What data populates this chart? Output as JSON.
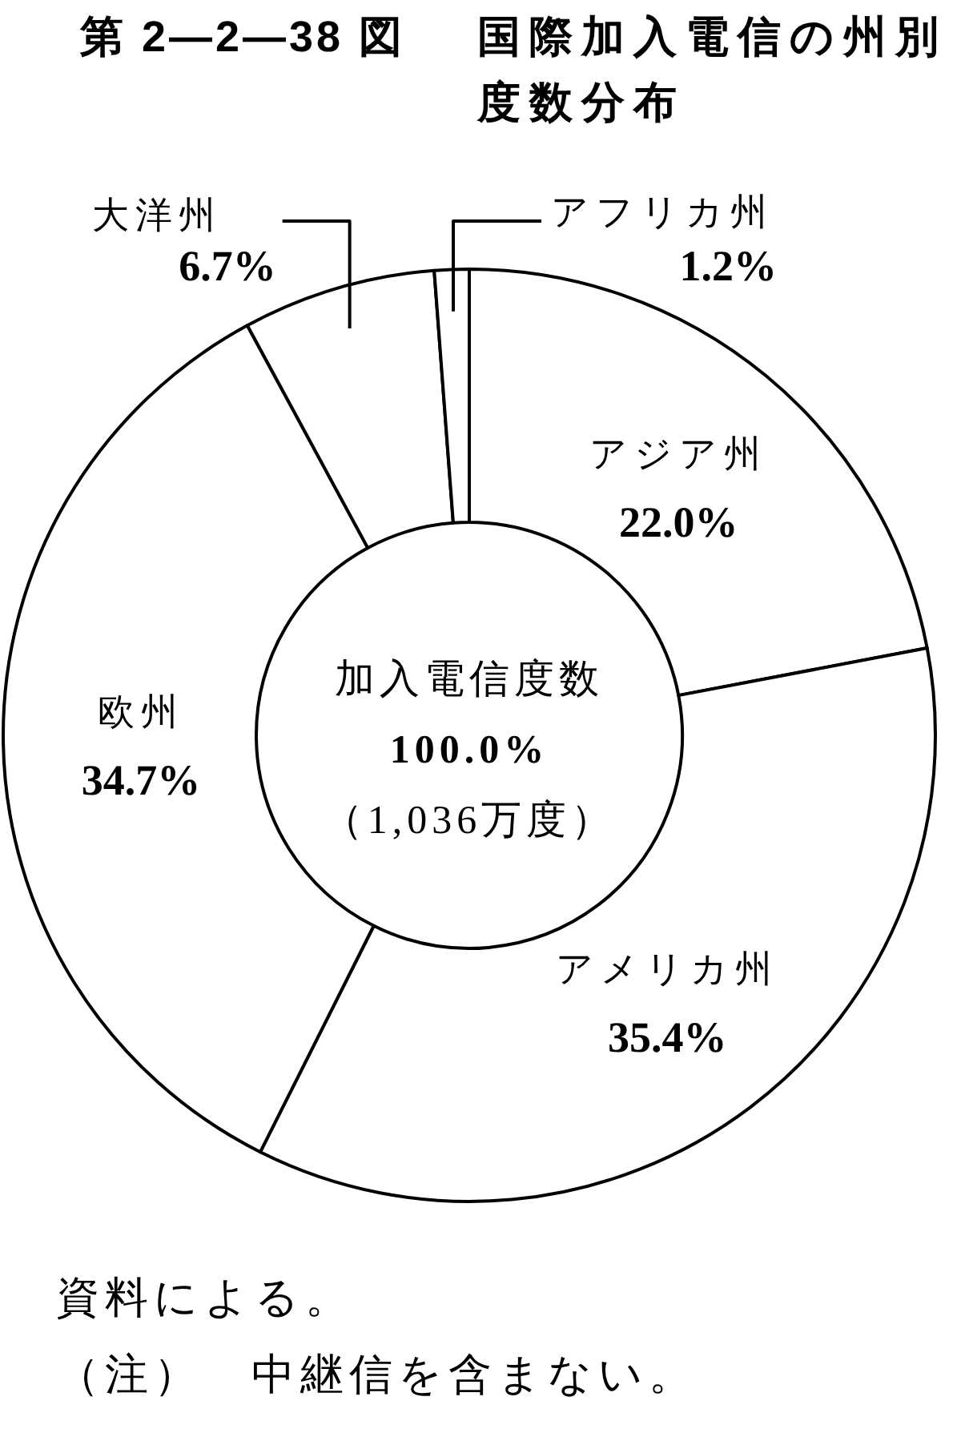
{
  "chart_data": {
    "type": "donut",
    "title": "第 2―2―38 図　国際加入電信の州別度数分布",
    "categories": [
      "アジア州",
      "アメリカ州",
      "欧州",
      "大洋州",
      "アフリカ州"
    ],
    "values": [
      22.0,
      35.4,
      34.7,
      6.7,
      1.2
    ],
    "colors": [
      "#ffffff",
      "#ffffff",
      "#ffffff",
      "#ffffff",
      "#ffffff"
    ],
    "value_labels": [
      "22.0%",
      "35.4%",
      "34.7%",
      "6.7%",
      "1.2%"
    ],
    "annotations": [
      "加入電信度数\n100.0%\n（1,036万度）",
      "資料による。",
      "（注）　中継信を含まない。"
    ]
  }
}
